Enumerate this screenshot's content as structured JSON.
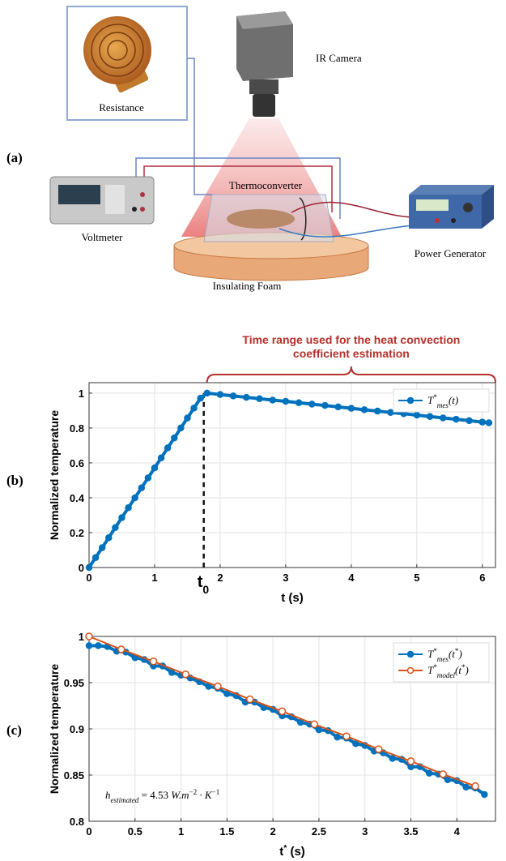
{
  "panel_labels": [
    "(a)",
    "(b)",
    "(c)"
  ],
  "diagram": {
    "labels": [
      "Resistance",
      "IR Camera",
      "Thermoconverter",
      "Voltmeter",
      "Power Generator",
      "Insulating Foam"
    ]
  },
  "chart_data": [
    {
      "type": "line",
      "xlabel": "t (s)",
      "ylabel": "Normalized temperature",
      "xlim": [
        0,
        6.2
      ],
      "ylim": [
        0,
        1.06
      ],
      "xticks": [
        0,
        1,
        2,
        3,
        4,
        5,
        6
      ],
      "yticks": [
        0,
        0.2,
        0.4,
        0.6,
        0.8,
        1
      ],
      "grid": true,
      "legend": "upper right",
      "annotation": [
        "Time range used for the heat convection",
        "coefficient estimation"
      ],
      "range": [
        1.8,
        6.2
      ],
      "marker_x": 1.75,
      "marker_label": [
        "t",
        "0"
      ],
      "series": [
        {
          "name_parts": [
            [
              "T",
              "i"
            ],
            [
              "*",
              "sup"
            ],
            [
              "mes",
              "sub"
            ],
            [
              "(t)",
              "i"
            ]
          ],
          "color": "#0072BD",
          "marker": "filled",
          "x": [
            0,
            0.1,
            0.2,
            0.3,
            0.4,
            0.5,
            0.6,
            0.7,
            0.8,
            0.9,
            1.0,
            1.1,
            1.2,
            1.3,
            1.4,
            1.5,
            1.6,
            1.7,
            1.8,
            2.0,
            2.2,
            2.4,
            2.6,
            2.8,
            3.0,
            3.2,
            3.4,
            3.6,
            3.8,
            4.0,
            4.2,
            4.4,
            4.6,
            4.8,
            5.0,
            5.2,
            5.4,
            5.6,
            5.8,
            6.0,
            6.1
          ],
          "values": [
            0,
            0.057,
            0.114,
            0.171,
            0.229,
            0.286,
            0.343,
            0.4,
            0.457,
            0.514,
            0.571,
            0.629,
            0.686,
            0.743,
            0.8,
            0.857,
            0.914,
            0.971,
            1.0,
            0.992,
            0.984,
            0.976,
            0.968,
            0.96,
            0.953,
            0.945,
            0.937,
            0.929,
            0.921,
            0.913,
            0.905,
            0.897,
            0.889,
            0.882,
            0.874,
            0.866,
            0.858,
            0.85,
            0.842,
            0.834,
            0.83
          ]
        }
      ]
    },
    {
      "type": "line",
      "xlabel_parts": [
        [
          "t",
          "b"
        ],
        [
          "*",
          "sup"
        ],
        [
          " (s)",
          "b"
        ]
      ],
      "ylabel": "Normalized temperature",
      "xlim": [
        0,
        4.42
      ],
      "ylim": [
        0.8,
        1.0
      ],
      "xticks": [
        0,
        0.5,
        1,
        1.5,
        2,
        2.5,
        3,
        3.5,
        4
      ],
      "yticks": [
        0.8,
        0.85,
        0.9,
        0.95,
        1
      ],
      "grid": true,
      "legend": "upper right",
      "annotation_parts": [
        [
          "h",
          "i"
        ],
        [
          "estimated",
          "sub"
        ],
        [
          " = 4.53",
          "n"
        ],
        [
          "   W.m",
          "i"
        ],
        [
          "−2",
          "sup"
        ],
        [
          " · K",
          "i"
        ],
        [
          "−1",
          "sup"
        ]
      ],
      "series": [
        {
          "name_parts": [
            [
              "T",
              "i"
            ],
            [
              "*",
              "sup"
            ],
            [
              "mes",
              "sub"
            ],
            [
              "(t",
              "i"
            ],
            [
              "*",
              "sup"
            ],
            [
              ")",
              "i"
            ]
          ],
          "color": "#0072BD",
          "marker": "filled",
          "x": [
            0,
            0.1,
            0.2,
            0.3,
            0.4,
            0.5,
            0.6,
            0.7,
            0.8,
            0.9,
            1.0,
            1.1,
            1.2,
            1.3,
            1.4,
            1.5,
            1.6,
            1.7,
            1.8,
            1.9,
            2.0,
            2.1,
            2.2,
            2.3,
            2.4,
            2.5,
            2.6,
            2.7,
            2.8,
            2.9,
            3.0,
            3.1,
            3.2,
            3.3,
            3.4,
            3.5,
            3.6,
            3.7,
            3.8,
            3.9,
            4.0,
            4.1,
            4.2,
            4.3
          ],
          "values": [
            0.99,
            0.99,
            0.989,
            0.984,
            0.983,
            0.977,
            0.975,
            0.968,
            0.968,
            0.961,
            0.958,
            0.955,
            0.951,
            0.946,
            0.944,
            0.938,
            0.936,
            0.929,
            0.929,
            0.923,
            0.921,
            0.914,
            0.913,
            0.907,
            0.905,
            0.899,
            0.898,
            0.891,
            0.89,
            0.884,
            0.882,
            0.876,
            0.874,
            0.868,
            0.867,
            0.859,
            0.859,
            0.852,
            0.851,
            0.845,
            0.844,
            0.837,
            0.836,
            0.829
          ]
        },
        {
          "name_parts": [
            [
              "T",
              "i"
            ],
            [
              "*",
              "sup"
            ],
            [
              "model",
              "sub"
            ],
            [
              "(t",
              "i"
            ],
            [
              "*",
              "sup"
            ],
            [
              ")",
              "i"
            ]
          ],
          "color": "#D95319",
          "marker": "open",
          "x": [
            0,
            0.35,
            0.7,
            1.05,
            1.4,
            1.75,
            2.1,
            2.45,
            2.8,
            3.15,
            3.5,
            3.85,
            4.2
          ],
          "values": [
            1.0,
            0.986,
            0.973,
            0.959,
            0.946,
            0.932,
            0.919,
            0.905,
            0.892,
            0.878,
            0.865,
            0.851,
            0.838
          ]
        }
      ]
    }
  ]
}
